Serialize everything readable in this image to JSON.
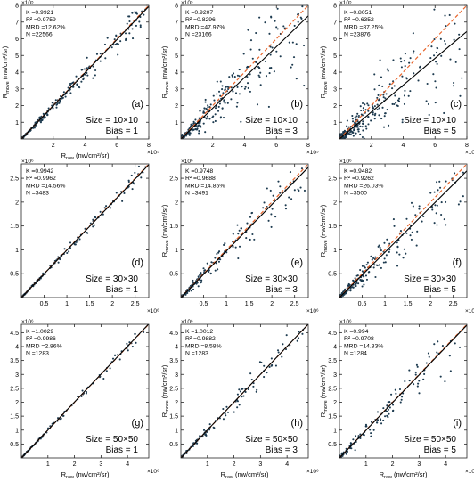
{
  "figure": {
    "ylabel_base": "R",
    "ylabel_sub": "move",
    "ylabel_unit": " (nw/cm²/sr)",
    "xlabel_base": "R",
    "xlabel_sub": "raw",
    "xlabel_unit": " (nw/cm²/sr)",
    "scatter_color": "#1c3a4f",
    "fit_line_color": "#000000",
    "reference_line_color": "#e8642a"
  },
  "chart_data": [
    {
      "type": "scatter",
      "panel_label": "(a)",
      "size_text": "Size = 10×10",
      "bias_text": "Bias = 1",
      "stats": [
        "K =0.9921",
        "R² =0.9759",
        "MRD =12.62%",
        "N =22566"
      ],
      "slope": 0.9921,
      "spread": 0.07,
      "n_points": 260,
      "exponent": "×10⁵",
      "xlim": [
        0,
        8
      ],
      "ylim": [
        0,
        8
      ],
      "xticks": [
        2,
        4,
        6,
        8
      ],
      "yticks": [
        1,
        2,
        3,
        4,
        5,
        6,
        7,
        8
      ],
      "xtick_labels": [
        "2",
        "4",
        "6",
        "8"
      ],
      "ytick_labels": [
        "1",
        "2",
        "3",
        "4",
        "5",
        "6",
        "7",
        "8"
      ],
      "show_xlabel": true,
      "show_ylabel": true
    },
    {
      "type": "scatter",
      "panel_label": "(b)",
      "size_text": "Size = 10×10",
      "bias_text": "Bias = 3",
      "stats": [
        "K =0.9207",
        "R² =0.8296",
        "MRD =47.97%",
        "N =23166"
      ],
      "slope": 0.9207,
      "spread": 0.25,
      "n_points": 280,
      "exponent": "×10⁵",
      "xlim": [
        0,
        8
      ],
      "ylim": [
        0,
        8
      ],
      "xticks": [
        2,
        4,
        6,
        8
      ],
      "yticks": [
        1,
        2,
        3,
        4,
        5,
        6,
        7,
        8
      ],
      "xtick_labels": [
        "2",
        "4",
        "6",
        "8"
      ],
      "ytick_labels": [
        "1",
        "2",
        "3",
        "4",
        "5",
        "6",
        "7",
        "8"
      ],
      "show_xlabel": false,
      "show_ylabel": true
    },
    {
      "type": "scatter",
      "panel_label": "(c)",
      "size_text": "Size = 10×10",
      "bias_text": "Bias = 5",
      "stats": [
        "K =0.8051",
        "R² =0.6352",
        "MRD =87.25%",
        "N =23876"
      ],
      "slope": 0.8051,
      "spread": 0.4,
      "n_points": 300,
      "exponent": "×10⁵",
      "xlim": [
        0,
        8
      ],
      "ylim": [
        0,
        8
      ],
      "xticks": [
        2,
        4,
        6,
        8
      ],
      "yticks": [
        1,
        2,
        3,
        4,
        5,
        6,
        7,
        8
      ],
      "xtick_labels": [
        "2",
        "4",
        "6",
        "8"
      ],
      "ytick_labels": [
        "1",
        "2",
        "3",
        "4",
        "5",
        "6",
        "7",
        "8"
      ],
      "show_xlabel": false,
      "show_ylabel": true
    },
    {
      "type": "scatter",
      "panel_label": "(d)",
      "size_text": "Size = 30×30",
      "bias_text": "Bias = 1",
      "stats": [
        "K =0.9942",
        "R² =0.9962",
        "MRD =14.56%",
        "N =3483"
      ],
      "slope": 0.9942,
      "spread": 0.04,
      "n_points": 160,
      "exponent": "×10⁶",
      "xlim": [
        0,
        2.8
      ],
      "ylim": [
        0,
        2.8
      ],
      "xticks": [
        0.5,
        1,
        1.5,
        2,
        2.5
      ],
      "yticks": [
        0.5,
        1,
        1.5,
        2,
        2.5
      ],
      "xtick_labels": [
        "0.5",
        "1",
        "1.5",
        "2",
        "2.5"
      ],
      "ytick_labels": [
        "0.5",
        "1",
        "1.5",
        "2",
        "2.5"
      ],
      "show_xlabel": false,
      "show_ylabel": false
    },
    {
      "type": "scatter",
      "panel_label": "(e)",
      "size_text": "Size = 30×30",
      "bias_text": "Bias = 3",
      "stats": [
        "K =0.9748",
        "R² =0.9688",
        "MRD =14.86%",
        "N =3491"
      ],
      "slope": 0.9748,
      "spread": 0.12,
      "n_points": 190,
      "exponent": "×10⁶",
      "xlim": [
        0,
        2.8
      ],
      "ylim": [
        0,
        2.8
      ],
      "xticks": [
        0.5,
        1,
        1.5,
        2,
        2.5
      ],
      "yticks": [
        0.5,
        1,
        1.5,
        2,
        2.5
      ],
      "xtick_labels": [
        "0.5",
        "1",
        "1.5",
        "2",
        "2.5"
      ],
      "ytick_labels": [
        "0.5",
        "1",
        "1.5",
        "2",
        "2.5"
      ],
      "show_xlabel": false,
      "show_ylabel": true
    },
    {
      "type": "scatter",
      "panel_label": "(f)",
      "size_text": "Size = 30×30",
      "bias_text": "Bias = 5",
      "stats": [
        "K =0.9482",
        "R² =0.9262",
        "MRD =26.03%",
        "N =3500"
      ],
      "slope": 0.9482,
      "spread": 0.2,
      "n_points": 210,
      "exponent": "×10⁶",
      "xlim": [
        0,
        2.8
      ],
      "ylim": [
        0,
        2.8
      ],
      "xticks": [
        0.5,
        1,
        1.5,
        2,
        2.5
      ],
      "yticks": [
        0.5,
        1,
        1.5,
        2,
        2.5
      ],
      "xtick_labels": [
        "0.5",
        "1",
        "1.5",
        "2",
        "2.5"
      ],
      "ytick_labels": [
        "0.5",
        "1",
        "1.5",
        "2",
        "2.5"
      ],
      "show_xlabel": false,
      "show_ylabel": true
    },
    {
      "type": "scatter",
      "panel_label": "(g)",
      "size_text": "Size = 50×50",
      "bias_text": "Bias = 1",
      "stats": [
        "K =1.0029",
        "R² =0.9986",
        "MRD =2.86%",
        "N =1283"
      ],
      "slope": 1.0029,
      "spread": 0.03,
      "n_points": 110,
      "exponent": "×10⁶",
      "xlim": [
        0,
        4.8
      ],
      "ylim": [
        0,
        4.8
      ],
      "xticks": [
        1,
        2,
        3,
        4
      ],
      "yticks": [
        0.5,
        1,
        1.5,
        2,
        2.5,
        3,
        3.5,
        4,
        4.5
      ],
      "xtick_labels": [
        "1",
        "2",
        "3",
        "4"
      ],
      "ytick_labels": [
        "0.5",
        "1",
        "1.5",
        "2",
        "2.5",
        "3",
        "3.5",
        "4",
        "4.5"
      ],
      "show_xlabel": true,
      "show_ylabel": false
    },
    {
      "type": "scatter",
      "panel_label": "(h)",
      "size_text": "Size = 50×50",
      "bias_text": "Bias = 3",
      "stats": [
        "K =1.0012",
        "R² =0.9882",
        "MRD =8.58%",
        "N =1283"
      ],
      "slope": 1.0012,
      "spread": 0.08,
      "n_points": 130,
      "exponent": "×10⁶",
      "xlim": [
        0,
        4.8
      ],
      "ylim": [
        0,
        4.8
      ],
      "xticks": [
        1,
        2,
        3,
        4
      ],
      "yticks": [
        0.5,
        1,
        1.5,
        2,
        2.5,
        3,
        3.5,
        4,
        4.5
      ],
      "xtick_labels": [
        "1",
        "2",
        "3",
        "4"
      ],
      "ytick_labels": [
        "0.5",
        "1",
        "1.5",
        "2",
        "2.5",
        "3",
        "3.5",
        "4",
        "4.5"
      ],
      "show_xlabel": true,
      "show_ylabel": true
    },
    {
      "type": "scatter",
      "panel_label": "(i)",
      "size_text": "Size = 50×50",
      "bias_text": "Bias = 5",
      "stats": [
        "K =0.994",
        "R² =0.9708",
        "MRD =14.33%",
        "N =1284"
      ],
      "slope": 0.994,
      "spread": 0.13,
      "n_points": 150,
      "exponent": "×10⁶",
      "xlim": [
        0,
        4.8
      ],
      "ylim": [
        0,
        4.8
      ],
      "xticks": [
        1,
        2,
        3,
        4
      ],
      "yticks": [
        0.5,
        1,
        1.5,
        2,
        2.5,
        3,
        3.5,
        4,
        4.5
      ],
      "xtick_labels": [
        "1",
        "2",
        "3",
        "4"
      ],
      "ytick_labels": [
        "0.5",
        "1",
        "1.5",
        "2",
        "2.5",
        "3",
        "3.5",
        "4",
        "4.5"
      ],
      "show_xlabel": true,
      "show_ylabel": true
    }
  ]
}
